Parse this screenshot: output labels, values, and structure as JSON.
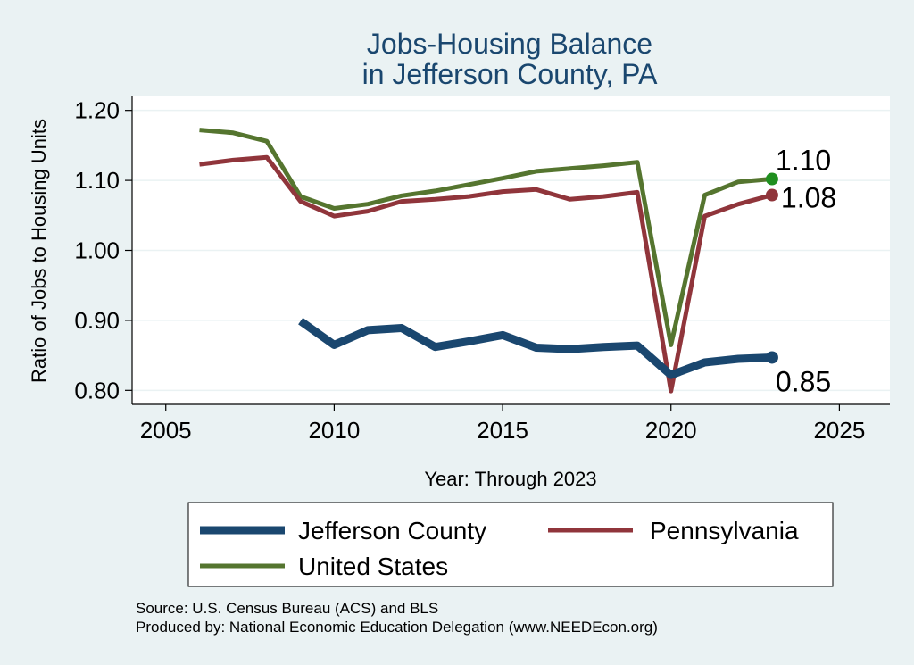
{
  "chart_data": {
    "type": "line",
    "title_lines": [
      "Jobs-Housing Balance",
      "in Jefferson County, PA"
    ],
    "xlabel": "Year: Through 2023",
    "ylabel": "Ratio of Jobs to Housing Units",
    "xlim": [
      2004,
      2026.5
    ],
    "ylim": [
      0.78,
      1.22
    ],
    "x_ticks": [
      2005,
      2010,
      2015,
      2020,
      2025
    ],
    "y_ticks": [
      0.8,
      0.9,
      1.0,
      1.1,
      1.2
    ],
    "y_tick_labels": [
      "0.80",
      "0.90",
      "1.00",
      "1.10",
      "1.20"
    ],
    "grid": true,
    "legend_position": "bottom",
    "series": [
      {
        "name": "Jefferson County",
        "color": "#1a476f",
        "x": [
          2009,
          2010,
          2011,
          2012,
          2013,
          2014,
          2015,
          2016,
          2017,
          2018,
          2019,
          2020,
          2021,
          2022,
          2023
        ],
        "values": [
          0.899,
          0.865,
          0.886,
          0.889,
          0.862,
          0.87,
          0.879,
          0.861,
          0.859,
          0.862,
          0.864,
          0.822,
          0.84,
          0.845,
          0.847
        ],
        "end_label": "0.85"
      },
      {
        "name": "Pennsylvania",
        "color": "#90353b",
        "x": [
          2006,
          2007,
          2008,
          2009,
          2010,
          2011,
          2012,
          2013,
          2014,
          2015,
          2016,
          2017,
          2018,
          2019,
          2020,
          2021,
          2022,
          2023
        ],
        "values": [
          1.123,
          1.129,
          1.133,
          1.07,
          1.049,
          1.056,
          1.07,
          1.073,
          1.077,
          1.084,
          1.087,
          1.073,
          1.077,
          1.083,
          0.799,
          1.049,
          1.066,
          1.079
        ],
        "end_label": "1.08"
      },
      {
        "name": "United States",
        "color": "#55752f",
        "x": [
          2006,
          2007,
          2008,
          2009,
          2010,
          2011,
          2012,
          2013,
          2014,
          2015,
          2016,
          2017,
          2018,
          2019,
          2020,
          2021,
          2022,
          2023
        ],
        "values": [
          1.172,
          1.168,
          1.156,
          1.077,
          1.06,
          1.066,
          1.078,
          1.085,
          1.094,
          1.103,
          1.113,
          1.117,
          1.121,
          1.126,
          0.865,
          1.079,
          1.098,
          1.102
        ],
        "end_label": "1.10",
        "end_marker_color": "#1f8f1f"
      }
    ],
    "footnotes": [
      "Source: U.S. Census Bureau (ACS) and BLS",
      "Produced by: National Economic Education Delegation (www.NEEDEcon.org)"
    ]
  }
}
